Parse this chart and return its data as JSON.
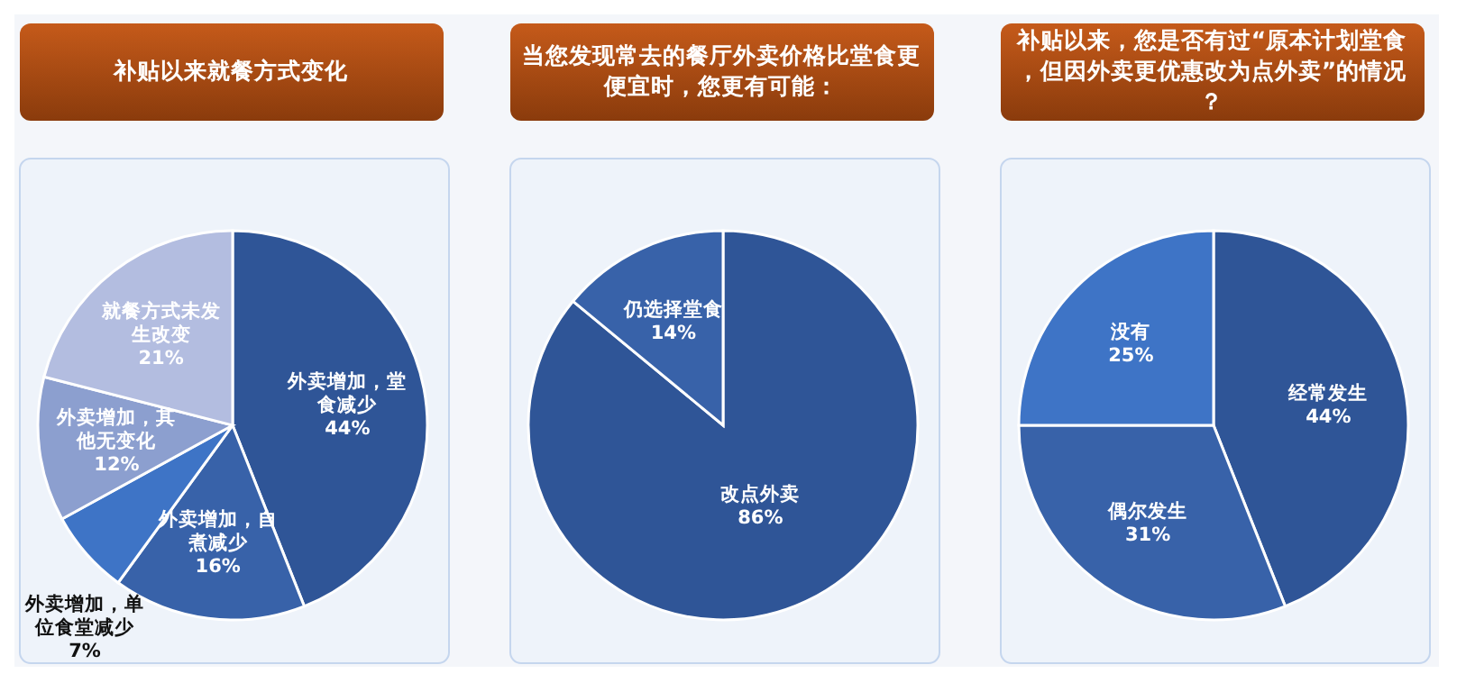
{
  "chart_data": [
    {
      "type": "pie",
      "title": "补贴以来就餐方式变化",
      "categories": [
        "外卖增加，堂食减少",
        "外卖增加，自煮减少",
        "外卖增加，单位食堂减少",
        "外卖增加，其他无变化",
        "就餐方式未发生改变"
      ],
      "values": [
        44,
        16,
        7,
        12,
        21
      ],
      "colors": [
        "#2f5597",
        "#3862a9",
        "#3e74c6",
        "#8c9fcf",
        "#b3bde0"
      ],
      "value_labels": [
        "44%",
        "16%",
        "7%",
        "12%",
        "21%"
      ]
    },
    {
      "type": "pie",
      "title": "当您发现常去的餐厅外卖价格比堂食更便宜时，您更有可能：",
      "categories": [
        "改点外卖",
        "仍选择堂食"
      ],
      "values": [
        86,
        14
      ],
      "colors": [
        "#2f5597",
        "#3862a9"
      ],
      "value_labels": [
        "86%",
        "14%"
      ]
    },
    {
      "type": "pie",
      "title": "补贴以来，您是否有过“原本计划堂食，但因外卖更优惠改为点外卖”的情况？",
      "categories": [
        "经常发生",
        "偶尔发生",
        "没有"
      ],
      "values": [
        44,
        31,
        25
      ],
      "colors": [
        "#2f5597",
        "#3862a9",
        "#3e74c6"
      ],
      "value_labels": [
        "44%",
        "31%",
        "25%"
      ]
    }
  ]
}
